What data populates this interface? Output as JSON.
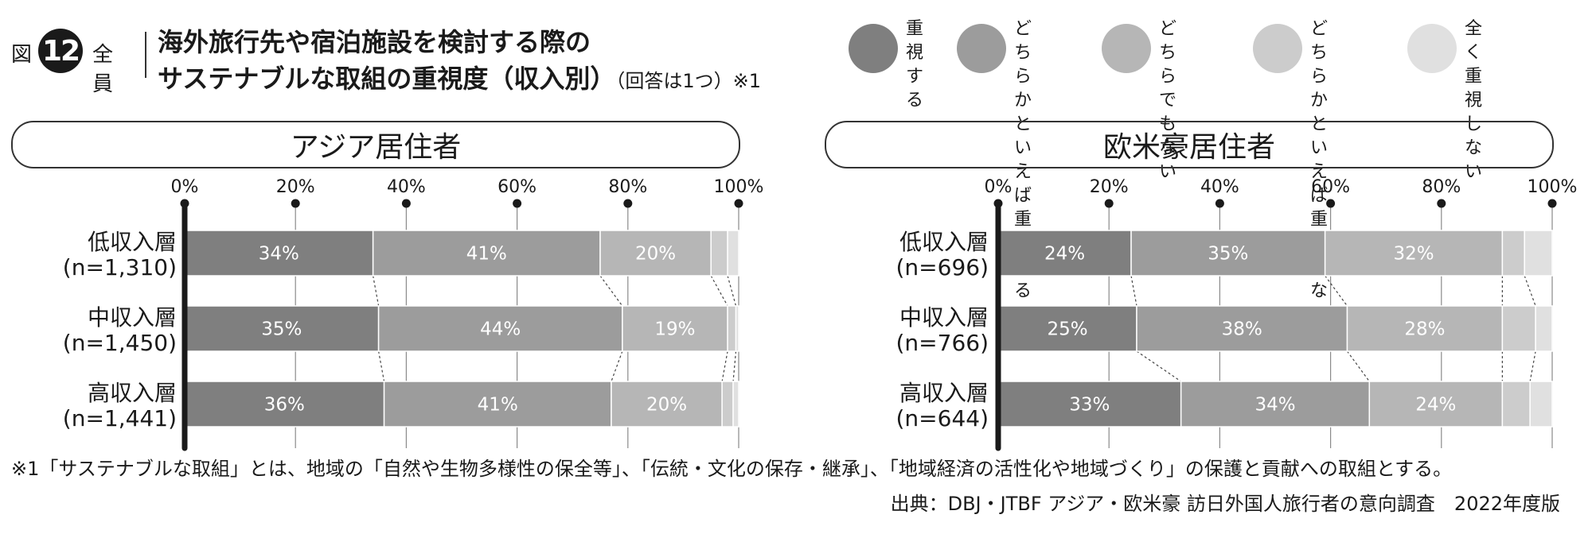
{
  "figure": {
    "label": "図",
    "number": "12",
    "scope": "全員",
    "title_line1": "海外旅行先や宿泊施設を検討する際の",
    "title_line2": "サステナブルな取組の重視度（収入別）",
    "title_note": "（回答は1つ）※1"
  },
  "legend": [
    {
      "label": "重視\nする",
      "color": "#7f7f7f"
    },
    {
      "label": "どちらかと\nいえば\n重視する",
      "color": "#9c9c9c"
    },
    {
      "label": "どちらでも\nない",
      "color": "#b6b6b6"
    },
    {
      "label": "どちらかと\nいえば\n重視しない",
      "color": "#cccccc"
    },
    {
      "label": "全く\n重視しない",
      "color": "#e0e0e0"
    }
  ],
  "chart_data": [
    {
      "type": "bar",
      "orientation": "horizontal-stacked",
      "title": "アジア居住者",
      "xlim": [
        0,
        100
      ],
      "x_ticks": [
        "0%",
        "20%",
        "40%",
        "60%",
        "80%",
        "100%"
      ],
      "categories": [
        {
          "name": "低収入層",
          "n": "(n=1,310)"
        },
        {
          "name": "中収入層",
          "n": "(n=1,450)"
        },
        {
          "name": "高収入層",
          "n": "(n=1,441)"
        }
      ],
      "series": [
        {
          "name": "重視する",
          "values": [
            34,
            35,
            36
          ],
          "labels": [
            "34%",
            "35%",
            "36%"
          ]
        },
        {
          "name": "どちらかといえば重視する",
          "values": [
            41,
            44,
            41
          ],
          "labels": [
            "41%",
            "44%",
            "41%"
          ]
        },
        {
          "name": "どちらでもない",
          "values": [
            20,
            19,
            20
          ],
          "labels": [
            "20%",
            "19%",
            "20%"
          ]
        },
        {
          "name": "どちらかといえば重視しない",
          "values": [
            3,
            1.5,
            2
          ],
          "labels": [
            "",
            "",
            ""
          ]
        },
        {
          "name": "全く重視しない",
          "values": [
            2,
            0.5,
            1
          ],
          "labels": [
            "",
            "",
            ""
          ]
        }
      ]
    },
    {
      "type": "bar",
      "orientation": "horizontal-stacked",
      "title": "欧米豪居住者",
      "xlim": [
        0,
        100
      ],
      "x_ticks": [
        "0%",
        "20%",
        "40%",
        "60%",
        "80%",
        "100%"
      ],
      "categories": [
        {
          "name": "低収入層",
          "n": "(n=696)"
        },
        {
          "name": "中収入層",
          "n": "(n=766)"
        },
        {
          "name": "高収入層",
          "n": "(n=644)"
        }
      ],
      "series": [
        {
          "name": "重視する",
          "values": [
            24,
            25,
            33
          ],
          "labels": [
            "24%",
            "25%",
            "33%"
          ]
        },
        {
          "name": "どちらかといえば重視する",
          "values": [
            35,
            38,
            34
          ],
          "labels": [
            "35%",
            "38%",
            "34%"
          ]
        },
        {
          "name": "どちらでもない",
          "values": [
            32,
            28,
            24
          ],
          "labels": [
            "32%",
            "28%",
            "24%"
          ]
        },
        {
          "name": "どちらかといえば重視しない",
          "values": [
            4,
            6,
            5
          ],
          "labels": [
            "",
            "",
            ""
          ]
        },
        {
          "name": "全く重視しない",
          "values": [
            5,
            3,
            4
          ],
          "labels": [
            "",
            "",
            ""
          ]
        }
      ]
    }
  ],
  "footnote": "※1「サステナブルな取組」とは、地域の「自然や生物多様性の保全等」、「伝統・文化の保存・継承」、「地域経済の活性化や地域づくり」の保護と貢献への取組とする。",
  "source": "出典：DBJ・JTBF アジア・欧米豪 訪日外国人旅行者の意向調査　2022年度版"
}
